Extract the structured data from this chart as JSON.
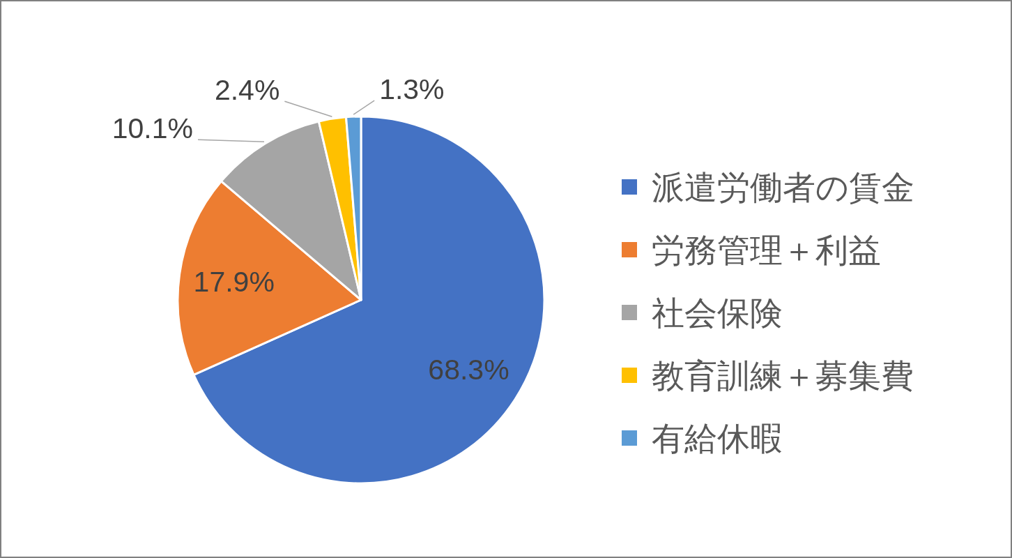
{
  "chart_data": {
    "type": "pie",
    "categories": [
      "派遣労働者の賃金",
      "労務管理＋利益",
      "社会保険",
      "教育訓練＋募集費",
      "有給休暇"
    ],
    "values": [
      68.3,
      17.9,
      10.1,
      2.4,
      1.3
    ],
    "colors": [
      "#4472c4",
      "#ed7d31",
      "#a5a5a5",
      "#ffc000",
      "#5b9bd5"
    ],
    "value_labels": [
      "68.3%",
      "17.9%",
      "10.1%",
      "2.4%",
      "1.3%"
    ],
    "legend": "right"
  }
}
